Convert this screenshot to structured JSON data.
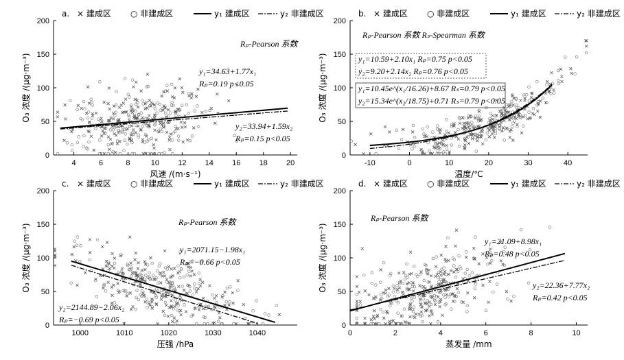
{
  "chart_data": [
    {
      "panel": "a.",
      "type": "scatter",
      "xlabel": "风速 /(m·s⁻¹)",
      "ylabel": "O₃ 浓度 /(μg·m⁻³)",
      "xlim": [
        2.5,
        20.5
      ],
      "ylim": [
        0,
        200
      ],
      "xticks": [
        "4",
        "6",
        "8",
        "10",
        "12",
        "14",
        "16",
        "18",
        "20"
      ],
      "yticks": [
        "0",
        "50",
        "100",
        "150",
        "200"
      ],
      "legend": [
        "× 建成区",
        "○ 非建成区",
        "y₁ 建成区",
        "y₂ 非建成区"
      ],
      "series": [
        {
          "name": "y₁ 建成区",
          "fit": "linear",
          "a": 34.63,
          "b": 1.77,
          "x": [
            3,
            19.8
          ]
        },
        {
          "name": "y₂ 非建成区",
          "fit": "linear",
          "a": 33.94,
          "b": 1.59,
          "x": [
            3,
            19.8
          ]
        }
      ],
      "scatter": {
        "xmean": 8.5,
        "xsd": 2.6,
        "ymean": 42,
        "ysd": 28,
        "seed": 11,
        "n": 360
      },
      "annotations": [
        {
          "text": "Rₚ-Pearson 系数",
          "pos": [
            350,
            68
          ]
        },
        {
          "text": "y₁=34.63+1.77x₁",
          "pos": [
            290,
            108
          ]
        },
        {
          "text": "Rₚ=0.19 p<0.05",
          "pos": [
            290,
            126
          ]
        },
        {
          "text": "y₂=33.94+1.59x₂",
          "pos": [
            343,
            188
          ]
        },
        {
          "text": "Rₚ=0.15 p<0.05",
          "pos": [
            343,
            206
          ]
        }
      ]
    },
    {
      "panel": "b.",
      "type": "scatter",
      "xlabel": "温度/℃",
      "ylabel": "O₃ 浓度 /(μg·m⁻³)",
      "xlim": [
        -15,
        45
      ],
      "ylim": [
        0,
        200
      ],
      "xticks": [
        "-10",
        "0",
        "10",
        "20",
        "30",
        "40"
      ],
      "yticks": [
        "0",
        "50",
        "100",
        "150",
        "200"
      ],
      "legend": [
        "× 建成区",
        "○ 非建成区",
        "y₁ 建成区",
        "y₂ 非建成区"
      ],
      "series": [
        {
          "name": "y₁ 建成区",
          "fit": "exp",
          "a": 10.45,
          "k": 16.26,
          "c": 8.67,
          "x": [
            -10,
            36
          ]
        },
        {
          "name": "y₂ 非建成区",
          "fit": "exp",
          "a": 15.34,
          "k": 18.75,
          "c": 0.71,
          "x": [
            -10,
            36
          ]
        }
      ],
      "scatter": {
        "xmean": 18,
        "xsd": 11,
        "ymean": 50,
        "ysd": 24,
        "seed": 23,
        "n": 360,
        "trend": "exp"
      },
      "annotations": [
        {
          "text": "Rₚ-Pearson 系数   Rₛ-Spearman 系数",
          "pos": [
            528,
            55
          ]
        },
        {
          "text": "y₁=10.59+2.10x₁ Rₚ=0.75 p<0.05",
          "pos": [
            522,
            90
          ]
        },
        {
          "text": "y₂=9.20+2.14x₂ Rₚ=0.76 p<0.05",
          "pos": [
            522,
            108
          ]
        },
        {
          "text": "y₁=10.45e^(x₁/16.26)+8.67 Rₛ=0.79 p<0.05",
          "pos": [
            522,
            133
          ]
        },
        {
          "text": "y₂=15.34e^(x₂/18.75)+0.71 Rₛ=0.79 p<0.05",
          "pos": [
            522,
            151
          ]
        }
      ]
    },
    {
      "panel": "c.",
      "type": "scatter",
      "xlabel": "压强 /hPa",
      "ylabel": "O₃ 浓度 /(μg·m⁻³)",
      "xlim": [
        994,
        1049
      ],
      "ylim": [
        0,
        200
      ],
      "xticks": [
        "1000",
        "1010",
        "1020",
        "1030",
        "1040"
      ],
      "yticks": [
        "0",
        "50",
        "100",
        "150",
        "200"
      ],
      "legend": [
        "× 建成区",
        "○ 非建成区",
        "y₁ 建成区",
        "y₂ 非建成区"
      ],
      "series": [
        {
          "name": "y₁ 建成区",
          "fit": "linear",
          "a": 2071.15,
          "b": -1.98,
          "x": [
            998,
            1044
          ]
        },
        {
          "name": "y₂ 非建成区",
          "fit": "linear",
          "a": 2144.89,
          "b": -2.06,
          "x": [
            998,
            1040
          ]
        }
      ],
      "scatter": {
        "xmean": 1018,
        "xsd": 10,
        "ymean": 55,
        "ysd": 25,
        "seed": 37,
        "n": 360,
        "trend": "neg"
      },
      "annotations": [
        {
          "text": "Rₚ-Pearson 系数",
          "pos": [
            260,
            328
          ]
        },
        {
          "text": "y₁=2071.15−1.98x₁",
          "pos": [
            262,
            368
          ]
        },
        {
          "text": "Rₚ=−0.66 p<0.05",
          "pos": [
            262,
            386
          ]
        },
        {
          "text": "y₂=2144.89−2.06x₂",
          "pos": [
            86,
            452
          ]
        },
        {
          "text": "Rₚ=−0.69 p<0.05",
          "pos": [
            86,
            470
          ]
        }
      ]
    },
    {
      "panel": "d.",
      "type": "scatter",
      "xlabel": "蒸发量 /mm",
      "ylabel": "O₃ 浓度 /(μg·m⁻³)",
      "xlim": [
        0,
        10.5
      ],
      "ylim": [
        0,
        200
      ],
      "xticks": [
        "0",
        "2",
        "4",
        "6",
        "8",
        "10"
      ],
      "yticks": [
        "0",
        "50",
        "100",
        "150",
        "200"
      ],
      "legend": [
        "× 建成区",
        "○ 非建成区",
        "y₁ 建成区",
        "y₂ 非建成区"
      ],
      "series": [
        {
          "name": "y₁ 建成区",
          "fit": "linear",
          "a": 21.09,
          "b": 8.98,
          "x": [
            0,
            9.5
          ]
        },
        {
          "name": "y₂ 非建成区",
          "fit": "linear",
          "a": 22.36,
          "b": 7.77,
          "x": [
            0,
            9.5
          ]
        }
      ],
      "scatter": {
        "xmean": 3.5,
        "xsd": 1.8,
        "ymean": 50,
        "ysd": 28,
        "seed": 53,
        "n": 360,
        "trend": "pos"
      },
      "annotations": [
        {
          "text": "Rₚ-Pearson 系数",
          "pos": [
            540,
            322
          ]
        },
        {
          "text": "y₁=21.09+8.98x₁",
          "pos": [
            706,
            356
          ]
        },
        {
          "text": "Rₚ=0.48 p<0.05",
          "pos": [
            706,
            374
          ]
        },
        {
          "text": "y₂=22.36+7.77x₂",
          "pos": [
            776,
            420
          ]
        },
        {
          "text": "Rₚ=0.42 p<0.05",
          "pos": [
            776,
            438
          ]
        }
      ]
    }
  ]
}
